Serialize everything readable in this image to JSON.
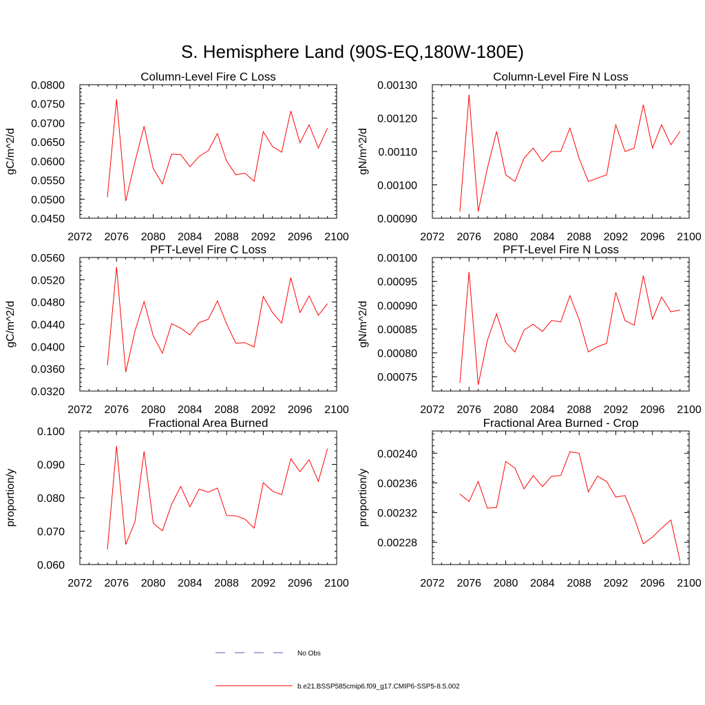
{
  "title": "S. Hemisphere Land (90S-EQ,180W-180E)",
  "legend": {
    "items": [
      {
        "label": "No Obs",
        "color": "#5555bb",
        "dash": true
      },
      {
        "label": "b.e21.BSSP585cmip6.f09_g17.CMIP6-SSP5-8.5.002",
        "color": "#ff0000",
        "dash": false
      }
    ]
  },
  "colors": {
    "series": "#ff0000",
    "axis": "#000000"
  },
  "chart_data": [
    {
      "type": "line",
      "title": "Column-Level Fire C Loss",
      "ylabel": "gC/m^2/d",
      "xlim": [
        2072,
        2100
      ],
      "ylim": [
        0.045,
        0.08
      ],
      "xticks": [
        "2072",
        "2076",
        "2080",
        "2084",
        "2088",
        "2092",
        "2096",
        "2100"
      ],
      "yticks": [
        "0.0450",
        "0.0500",
        "0.0550",
        "0.0600",
        "0.0650",
        "0.0700",
        "0.0750",
        "0.0800"
      ],
      "x": [
        2075,
        2076,
        2077,
        2078,
        2079,
        2080,
        2081,
        2082,
        2083,
        2084,
        2085,
        2086,
        2087,
        2088,
        2089,
        2090,
        2091,
        2092,
        2093,
        2094,
        2095,
        2096,
        2097,
        2098,
        2099
      ],
      "series": [
        {
          "values": [
            0.0505,
            0.0762,
            0.0495,
            0.0597,
            0.0691,
            0.058,
            0.054,
            0.0618,
            0.0617,
            0.0585,
            0.0612,
            0.0627,
            0.0672,
            0.06,
            0.0564,
            0.0568,
            0.0547,
            0.0677,
            0.0638,
            0.0623,
            0.0731,
            0.0648,
            0.0695,
            0.0634,
            0.0686
          ]
        }
      ]
    },
    {
      "type": "line",
      "title": "Column-Level Fire N Loss",
      "ylabel": "gN/m^2/d",
      "xlim": [
        2072,
        2100
      ],
      "ylim": [
        0.0009,
        0.0013
      ],
      "xticks": [
        "2072",
        "2076",
        "2080",
        "2084",
        "2088",
        "2092",
        "2096",
        "2100"
      ],
      "yticks": [
        "0.00090",
        "0.00100",
        "0.00110",
        "0.00120",
        "0.00130"
      ],
      "x": [
        2075,
        2076,
        2077,
        2078,
        2079,
        2080,
        2081,
        2082,
        2083,
        2084,
        2085,
        2086,
        2087,
        2088,
        2089,
        2090,
        2091,
        2092,
        2093,
        2094,
        2095,
        2096,
        2097,
        2098,
        2099
      ],
      "series": [
        {
          "values": [
            0.00092,
            0.00127,
            0.00092,
            0.00105,
            0.00116,
            0.00103,
            0.00101,
            0.00108,
            0.00111,
            0.00107,
            0.0011,
            0.0011,
            0.00117,
            0.00108,
            0.00101,
            0.00102,
            0.00103,
            0.00118,
            0.0011,
            0.00111,
            0.00124,
            0.00111,
            0.00118,
            0.00112,
            0.00116
          ]
        }
      ]
    },
    {
      "type": "line",
      "title": "PFT-Level Fire C Loss",
      "ylabel": "gC/m^2/d",
      "xlim": [
        2072,
        2100
      ],
      "ylim": [
        0.032,
        0.056
      ],
      "xticks": [
        "2072",
        "2076",
        "2080",
        "2084",
        "2088",
        "2092",
        "2096",
        "2100"
      ],
      "yticks": [
        "0.0320",
        "0.0360",
        "0.0400",
        "0.0440",
        "0.0480",
        "0.0520",
        "0.0560"
      ],
      "x": [
        2075,
        2076,
        2077,
        2078,
        2079,
        2080,
        2081,
        2082,
        2083,
        2084,
        2085,
        2086,
        2087,
        2088,
        2089,
        2090,
        2091,
        2092,
        2093,
        2094,
        2095,
        2096,
        2097,
        2098,
        2099
      ],
      "series": [
        {
          "values": [
            0.0366,
            0.0543,
            0.0354,
            0.0427,
            0.0481,
            0.0419,
            0.0388,
            0.0441,
            0.0433,
            0.0421,
            0.0443,
            0.0449,
            0.0482,
            0.0441,
            0.0406,
            0.0407,
            0.0399,
            0.049,
            0.0461,
            0.0442,
            0.0524,
            0.0461,
            0.0491,
            0.0456,
            0.0477
          ]
        }
      ]
    },
    {
      "type": "line",
      "title": "PFT-Level Fire N Loss",
      "ylabel": "gN/m^2/d",
      "xlim": [
        2072,
        2100
      ],
      "ylim": [
        0.00072,
        0.001
      ],
      "xticks": [
        "2072",
        "2076",
        "2080",
        "2084",
        "2088",
        "2092",
        "2096",
        "2100"
      ],
      "yticks": [
        "0.00075",
        "0.00080",
        "0.00085",
        "0.00090",
        "0.00095",
        "0.00100"
      ],
      "x": [
        2075,
        2076,
        2077,
        2078,
        2079,
        2080,
        2081,
        2082,
        2083,
        2084,
        2085,
        2086,
        2087,
        2088,
        2089,
        2090,
        2091,
        2092,
        2093,
        2094,
        2095,
        2096,
        2097,
        2098,
        2099
      ],
      "series": [
        {
          "values": [
            0.000737,
            0.00097,
            0.000733,
            0.000826,
            0.000882,
            0.000822,
            0.000802,
            0.000848,
            0.00086,
            0.000845,
            0.000868,
            0.000865,
            0.00092,
            0.00087,
            0.000802,
            0.000813,
            0.00082,
            0.000927,
            0.000868,
            0.000858,
            0.000962,
            0.000871,
            0.000917,
            0.000886,
            0.00089
          ]
        }
      ]
    },
    {
      "type": "line",
      "title": "Fractional Area Burned",
      "ylabel": "proportion/y",
      "xlim": [
        2072,
        2100
      ],
      "ylim": [
        0.06,
        0.1
      ],
      "xticks": [
        "2072",
        "2076",
        "2080",
        "2084",
        "2088",
        "2092",
        "2096",
        "2100"
      ],
      "yticks": [
        "0.060",
        "0.070",
        "0.080",
        "0.090",
        "0.100"
      ],
      "x": [
        2075,
        2076,
        2077,
        2078,
        2079,
        2080,
        2081,
        2082,
        2083,
        2084,
        2085,
        2086,
        2087,
        2088,
        2089,
        2090,
        2091,
        2092,
        2093,
        2094,
        2095,
        2096,
        2097,
        2098,
        2099
      ],
      "series": [
        {
          "values": [
            0.0645,
            0.0955,
            0.066,
            0.0727,
            0.0939,
            0.0724,
            0.0701,
            0.078,
            0.0834,
            0.0773,
            0.0826,
            0.0817,
            0.0829,
            0.0747,
            0.0746,
            0.0736,
            0.0709,
            0.0845,
            0.082,
            0.0809,
            0.0917,
            0.0878,
            0.0914,
            0.0849,
            0.0947
          ]
        }
      ]
    },
    {
      "type": "line",
      "title": "Fractional Area Burned - Crop",
      "ylabel": "proportion/y",
      "xlim": [
        2072,
        2100
      ],
      "ylim": [
        0.00225,
        0.00243
      ],
      "xticks": [
        "2072",
        "2076",
        "2080",
        "2084",
        "2088",
        "2092",
        "2096",
        "2100"
      ],
      "yticks": [
        "0.00228",
        "0.00232",
        "0.00236",
        "0.00240"
      ],
      "x": [
        2075,
        2076,
        2077,
        2078,
        2079,
        2080,
        2081,
        2082,
        2083,
        2084,
        2085,
        2086,
        2087,
        2088,
        2089,
        2090,
        2091,
        2092,
        2093,
        2094,
        2095,
        2096,
        2097,
        2098,
        2099
      ],
      "series": [
        {
          "values": [
            0.002345,
            0.002335,
            0.002362,
            0.002326,
            0.002327,
            0.002389,
            0.00238,
            0.002352,
            0.00237,
            0.002355,
            0.002369,
            0.00237,
            0.002402,
            0.0024,
            0.002348,
            0.002369,
            0.002362,
            0.002341,
            0.002343,
            0.002313,
            0.002278,
            0.002287,
            0.002299,
            0.00231,
            0.002255
          ]
        }
      ]
    }
  ]
}
